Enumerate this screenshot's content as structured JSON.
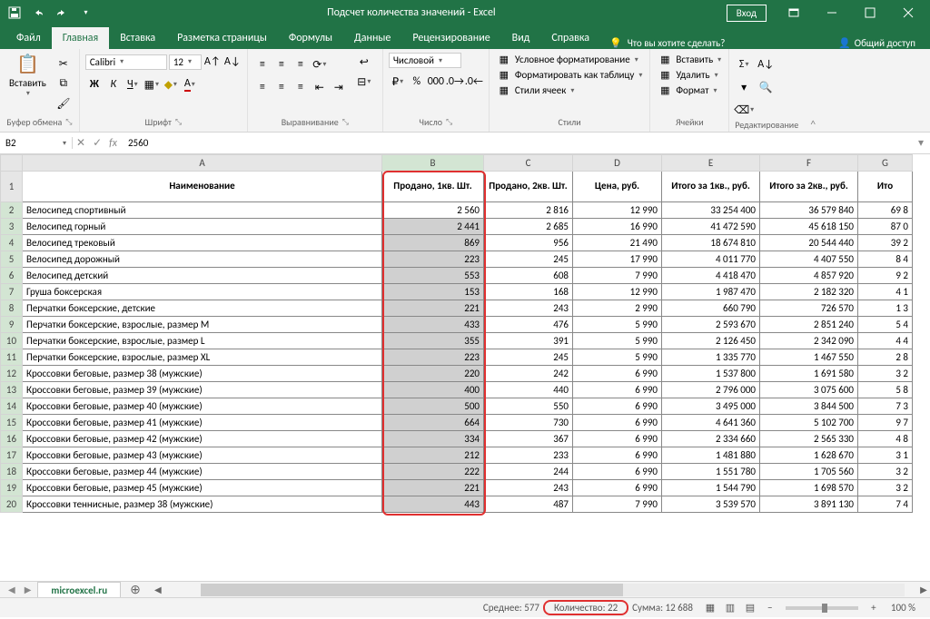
{
  "titlebar": {
    "title": "Подсчет количества значений  -  Excel",
    "login": "Вход"
  },
  "tabs": {
    "file": "Файл",
    "home": "Главная",
    "insert": "Вставка",
    "layout": "Разметка страницы",
    "formulas": "Формулы",
    "data": "Данные",
    "review": "Рецензирование",
    "view": "Вид",
    "help": "Справка",
    "tell_me": "Что вы хотите сделать?",
    "share": "Общий доступ"
  },
  "ribbon": {
    "clipboard": {
      "label": "Буфер обмена",
      "paste": "Вставить"
    },
    "font": {
      "label": "Шрифт",
      "name": "Calibri",
      "size": "12"
    },
    "alignment": {
      "label": "Выравнивание"
    },
    "number": {
      "label": "Число",
      "format": "Числовой"
    },
    "styles": {
      "label": "Стили",
      "cond_fmt": "Условное форматирование",
      "as_table": "Форматировать как таблицу",
      "cell_styles": "Стили ячеек"
    },
    "cells": {
      "label": "Ячейки",
      "insert": "Вставить",
      "delete": "Удалить",
      "format": "Формат"
    },
    "editing": {
      "label": "Редактирование"
    }
  },
  "formula_bar": {
    "name_box": "B2",
    "formula": "2560"
  },
  "columns": [
    "A",
    "B",
    "C",
    "D",
    "E",
    "F",
    "G"
  ],
  "selected_column": "B",
  "headers": {
    "A": "Наименование",
    "B": "Продано, 1кв. Шт.",
    "C": "Продано, 2кв. Шт.",
    "D": "Цена, руб.",
    "E": "Итого за 1кв., руб.",
    "F": "Итого за 2кв., руб.",
    "G": "Ито"
  },
  "rows": [
    {
      "n": 2,
      "A": "Велосипед спортивный",
      "B": "2 560",
      "C": "2 816",
      "D": "12 990",
      "E": "33 254 400",
      "F": "36 579 840",
      "G": "69 8"
    },
    {
      "n": 3,
      "A": "Велосипед горный",
      "B": "2 441",
      "C": "2 685",
      "D": "16 990",
      "E": "41 472 590",
      "F": "45 618 150",
      "G": "87 0"
    },
    {
      "n": 4,
      "A": "Велосипед трековый",
      "B": "869",
      "C": "956",
      "D": "21 490",
      "E": "18 674 810",
      "F": "20 544 440",
      "G": "39 2"
    },
    {
      "n": 5,
      "A": "Велосипед дорожный",
      "B": "223",
      "C": "245",
      "D": "17 990",
      "E": "4 011 770",
      "F": "4 407 550",
      "G": "8 4"
    },
    {
      "n": 6,
      "A": "Велосипед детский",
      "B": "553",
      "C": "608",
      "D": "7 990",
      "E": "4 418 470",
      "F": "4 857 920",
      "G": "9 2"
    },
    {
      "n": 7,
      "A": "Груша боксерская",
      "B": "153",
      "C": "168",
      "D": "12 990",
      "E": "1 987 470",
      "F": "2 182 320",
      "G": "4 1"
    },
    {
      "n": 8,
      "A": "Перчатки боксерские, детские",
      "B": "221",
      "C": "243",
      "D": "2 990",
      "E": "660 790",
      "F": "726 570",
      "G": "1 3"
    },
    {
      "n": 9,
      "A": "Перчатки боксерские, взрослые, размер M",
      "B": "433",
      "C": "476",
      "D": "5 990",
      "E": "2 593 670",
      "F": "2 851 240",
      "G": "5 4"
    },
    {
      "n": 10,
      "A": "Перчатки боксерские, взрослые, размер L",
      "B": "355",
      "C": "391",
      "D": "5 990",
      "E": "2 126 450",
      "F": "2 342 090",
      "G": "4 4"
    },
    {
      "n": 11,
      "A": "Перчатки боксерские, взрослые, размер XL",
      "B": "223",
      "C": "245",
      "D": "5 990",
      "E": "1 335 770",
      "F": "1 467 550",
      "G": "2 8"
    },
    {
      "n": 12,
      "A": "Кроссовки беговые, размер 38 (мужские)",
      "B": "220",
      "C": "242",
      "D": "6 990",
      "E": "1 537 800",
      "F": "1 691 580",
      "G": "3 2"
    },
    {
      "n": 13,
      "A": "Кроссовки беговые, размер 39 (мужские)",
      "B": "400",
      "C": "440",
      "D": "6 990",
      "E": "2 796 000",
      "F": "3 075 600",
      "G": "5 8"
    },
    {
      "n": 14,
      "A": "Кроссовки беговые, размер 40 (мужские)",
      "B": "500",
      "C": "550",
      "D": "6 990",
      "E": "3 495 000",
      "F": "3 844 500",
      "G": "7 3"
    },
    {
      "n": 15,
      "A": "Кроссовки беговые, размер 41 (мужские)",
      "B": "664",
      "C": "730",
      "D": "6 990",
      "E": "4 641 360",
      "F": "5 102 700",
      "G": "9 7"
    },
    {
      "n": 16,
      "A": "Кроссовки беговые, размер 42 (мужские)",
      "B": "334",
      "C": "367",
      "D": "6 990",
      "E": "2 334 660",
      "F": "2 565 330",
      "G": "4 8"
    },
    {
      "n": 17,
      "A": "Кроссовки беговые, размер 43 (мужские)",
      "B": "212",
      "C": "233",
      "D": "6 990",
      "E": "1 481 880",
      "F": "1 628 670",
      "G": "3 1"
    },
    {
      "n": 18,
      "A": "Кроссовки беговые, размер 44 (мужские)",
      "B": "222",
      "C": "244",
      "D": "6 990",
      "E": "1 551 780",
      "F": "1 705 560",
      "G": "3 2"
    },
    {
      "n": 19,
      "A": "Кроссовки беговые, размер 45 (мужские)",
      "B": "221",
      "C": "243",
      "D": "6 990",
      "E": "1 544 790",
      "F": "1 698 570",
      "G": "3 2"
    },
    {
      "n": 20,
      "A": "Кроссовки теннисные, размер 38 (мужские)",
      "B": "443",
      "C": "487",
      "D": "7 990",
      "E": "3 539 570",
      "F": "3 891 130",
      "G": "7 4"
    }
  ],
  "sheet_tab": "microexcel.ru",
  "statusbar": {
    "average_label": "Среднее:",
    "average_value": "577",
    "count_label": "Количество:",
    "count_value": "22",
    "sum_label": "Сумма:",
    "sum_value": "12 688",
    "zoom": "100 %"
  },
  "colors": {
    "excel_green": "#217346",
    "highlight_red": "#e03030",
    "selection_gray": "#d0d0d0"
  }
}
